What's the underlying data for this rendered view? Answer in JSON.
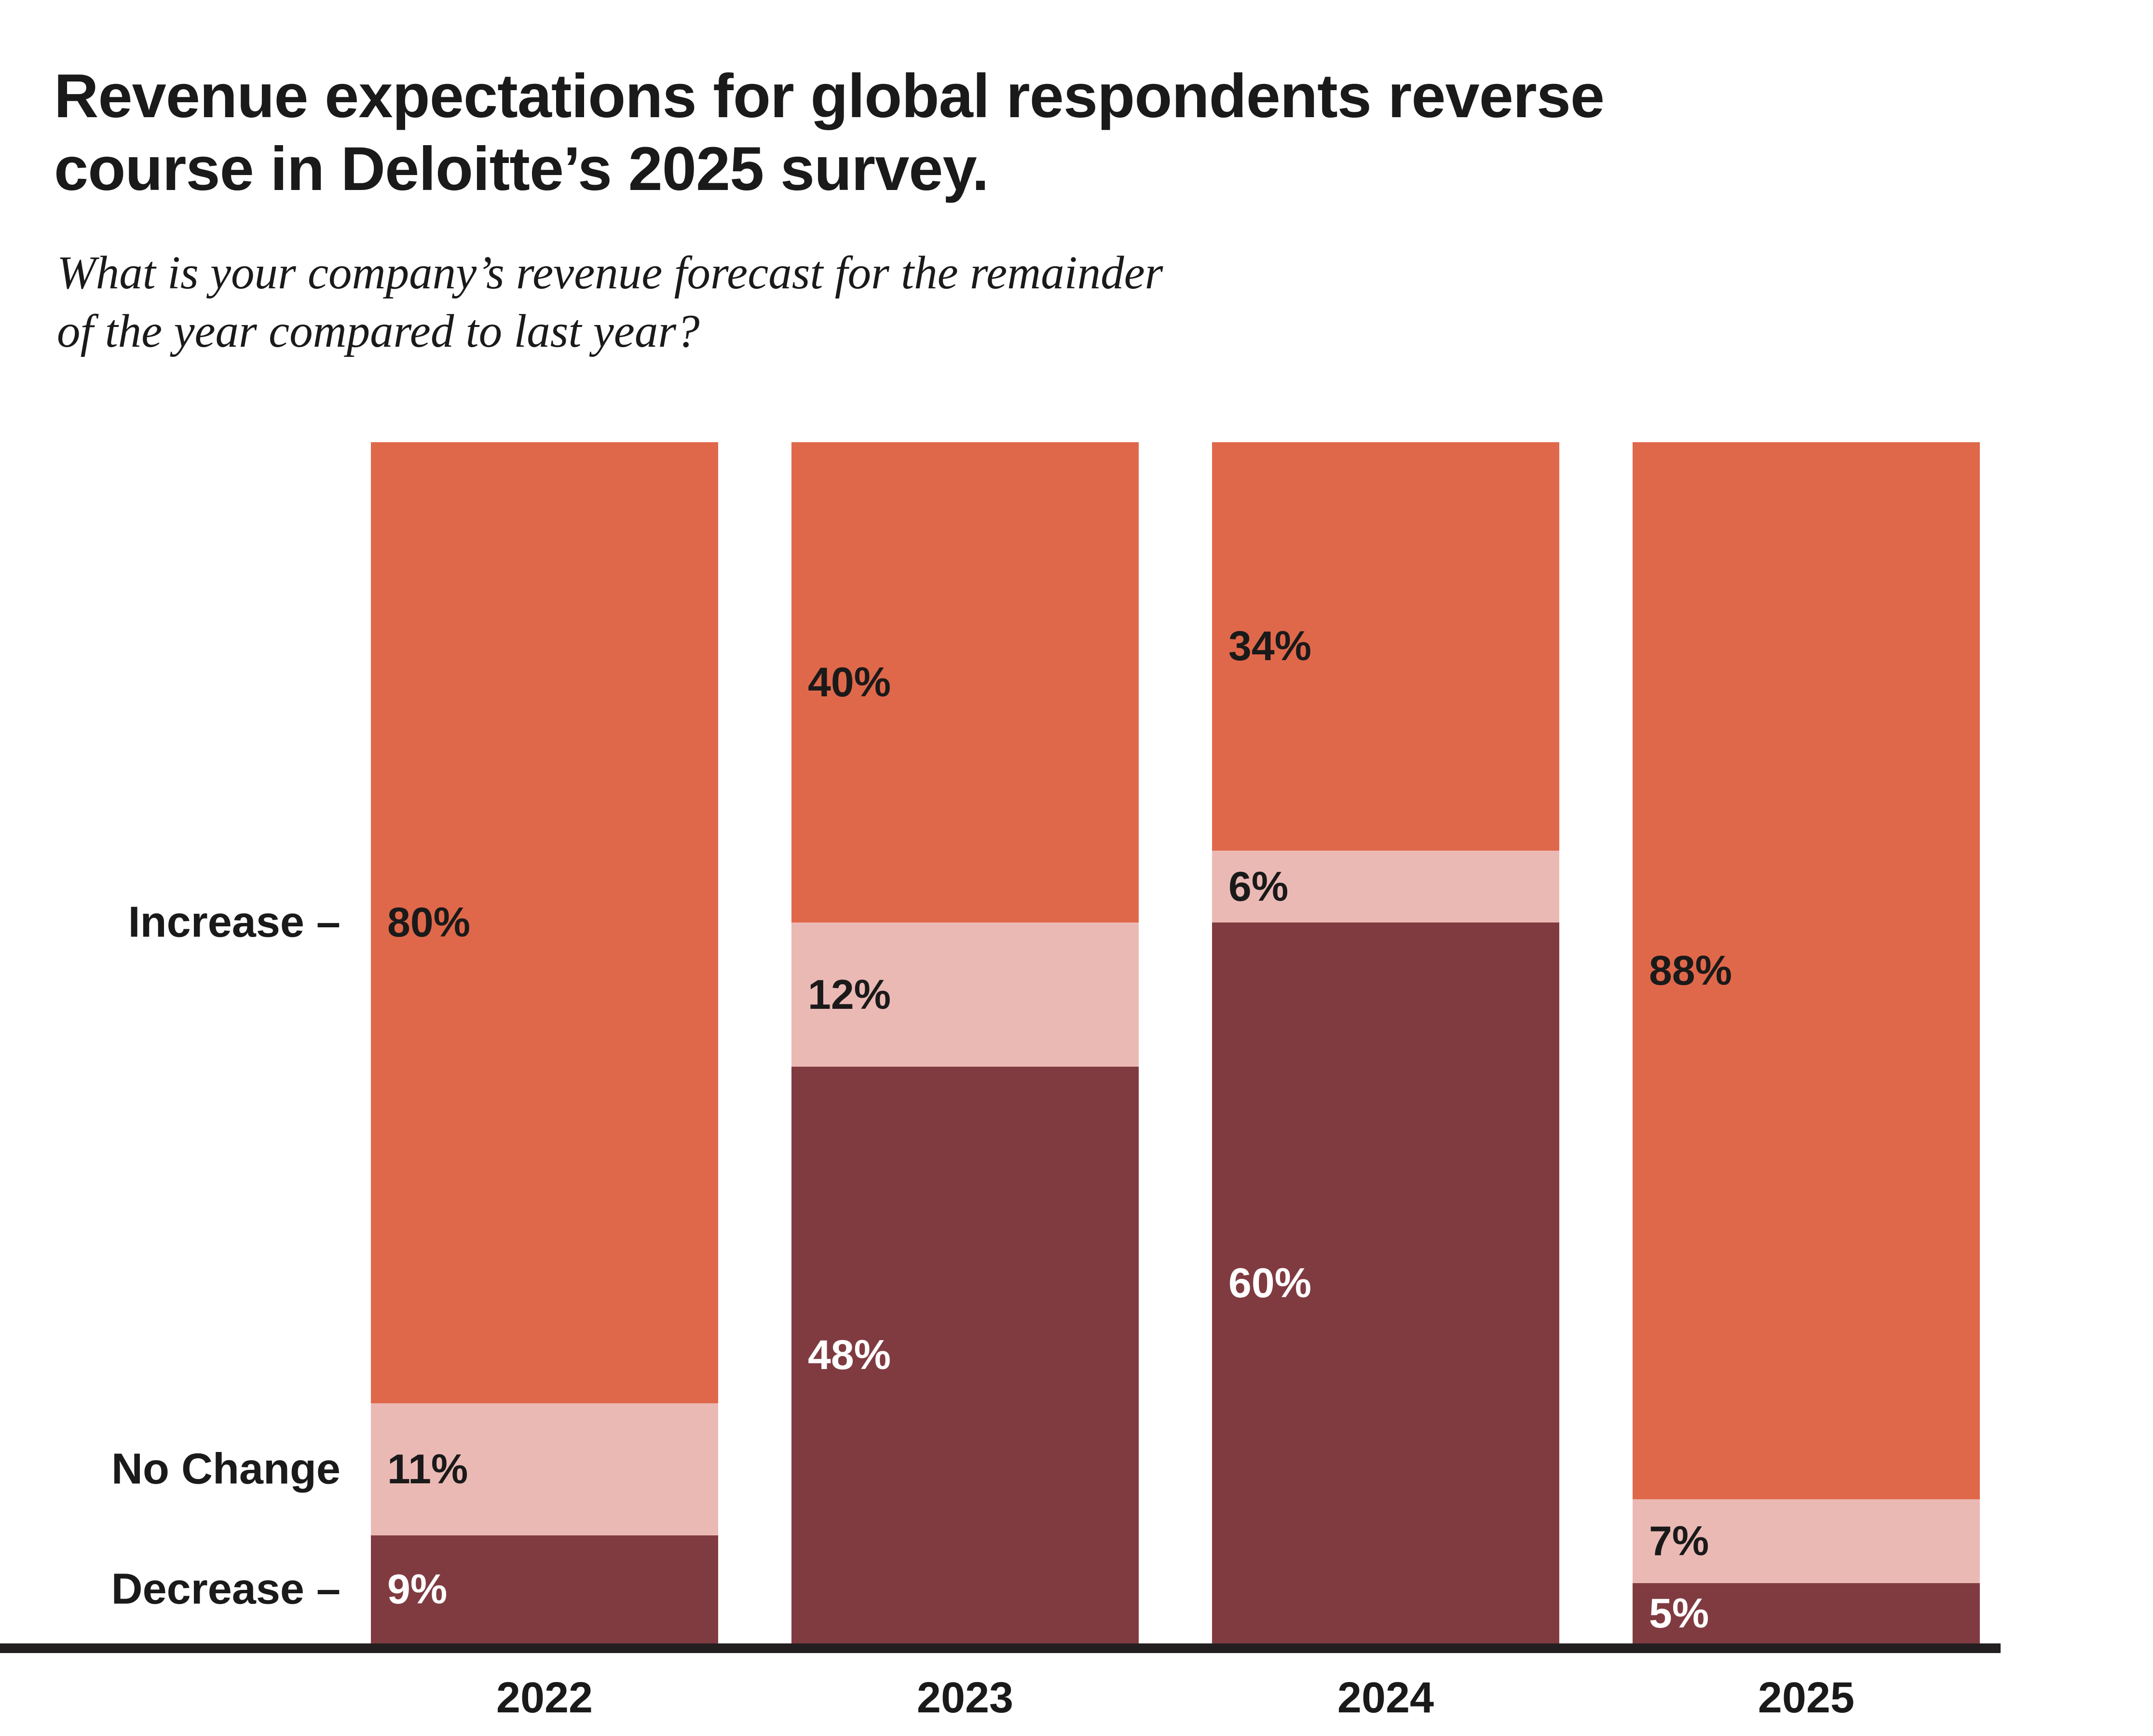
{
  "header": {
    "title": "Revenue expectations for global respondents reverse course in Deloitte’s 2025 survey.",
    "subtitle": "What is your company’s revenue forecast for the remainder of the year compared to last year?"
  },
  "chart_data": {
    "type": "bar",
    "subtype": "stacked-vertical",
    "title": "Revenue expectations for global respondents reverse course in Deloitte’s 2025 survey.",
    "question": "What is your company’s revenue forecast for the remainder of the year compared to last year?",
    "categories": [
      "2022",
      "2023",
      "2024",
      "2025"
    ],
    "series": [
      {
        "name": "Increase",
        "axis_label": "Increase –",
        "color": "#E0684A",
        "label_color": "#1a1a1a",
        "values": [
          80,
          40,
          34,
          88
        ]
      },
      {
        "name": "No Change",
        "axis_label": "No Change",
        "color": "#EBB9B4",
        "label_color": "#1a1a1a",
        "values": [
          11,
          12,
          6,
          7
        ]
      },
      {
        "name": "Decrease",
        "axis_label": "Decrease –",
        "color": "#803B41",
        "label_color": "#ffffff",
        "values": [
          9,
          48,
          60,
          5
        ]
      }
    ],
    "value_suffix": "%",
    "ylim": [
      0,
      100
    ],
    "grid": false,
    "legend": "none",
    "stack_order_top_to_bottom": [
      "Increase",
      "No Change",
      "Decrease"
    ]
  },
  "colors": {
    "background": "#ffffff",
    "axis": "#231f20",
    "text": "#1a1a1a"
  }
}
